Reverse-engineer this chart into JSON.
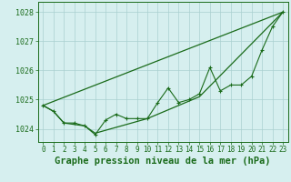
{
  "title": "Graphe pression niveau de la mer (hPa)",
  "xlabel_hours": [
    0,
    1,
    2,
    3,
    4,
    5,
    6,
    7,
    8,
    9,
    10,
    11,
    12,
    13,
    14,
    15,
    16,
    17,
    18,
    19,
    20,
    21,
    22,
    23
  ],
  "pressure_data": [
    1024.8,
    1024.6,
    1024.2,
    1024.2,
    1024.1,
    1023.8,
    1024.3,
    1024.5,
    1024.35,
    1024.35,
    1024.35,
    1024.9,
    1025.4,
    1024.9,
    1025.0,
    1025.2,
    1026.1,
    1025.3,
    1025.5,
    1025.5,
    1025.8,
    1026.7,
    1027.5,
    1028.0
  ],
  "trend_line_x": [
    0,
    23
  ],
  "trend_line_y": [
    1024.8,
    1028.0
  ],
  "smooth_line_x": [
    0,
    1,
    2,
    3,
    4,
    5,
    10,
    15,
    23
  ],
  "smooth_line_y": [
    1024.8,
    1024.6,
    1024.2,
    1024.15,
    1024.1,
    1023.85,
    1024.35,
    1025.1,
    1028.0
  ],
  "bg_color": "#d6efef",
  "grid_color": "#aad0d0",
  "line_color": "#1a6b1a",
  "text_color": "#1a6b1a",
  "ylim": [
    1023.55,
    1028.35
  ],
  "yticks": [
    1024,
    1025,
    1026,
    1027,
    1028
  ],
  "xlim": [
    -0.5,
    23.5
  ],
  "title_fontsize": 7.5,
  "tick_fontsize": 6.0,
  "label_fontsize": 7.5
}
